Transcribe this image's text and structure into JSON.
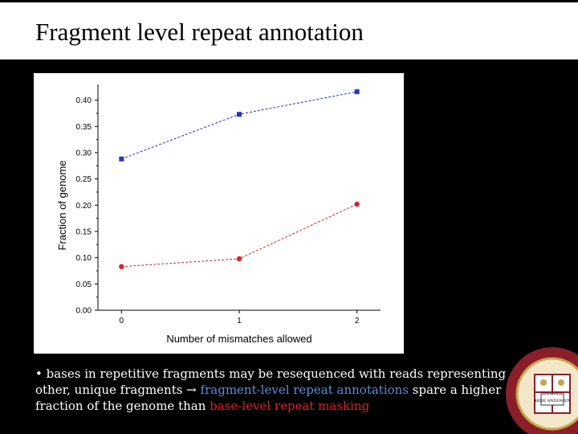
{
  "slide": {
    "title": "Fragment level repeat annotation",
    "bullet": {
      "part1": "• bases in repetitive fragments may be resequenced with reads representing other, unique fragments ",
      "arrow": "→",
      "part2": " fragment-level repeat annotations",
      "part3": " spare a higher fraction of the genome than ",
      "part4": "base-level repeat masking"
    },
    "seal_text": "ARDE ANDOMEN"
  },
  "colors": {
    "blue_series": "#2233cc",
    "red_series": "#dd2222",
    "highlight_blue": "#5b8fd9",
    "highlight_red": "#e02020"
  },
  "chart_data": {
    "type": "line",
    "x": [
      0,
      1,
      2
    ],
    "xticks": [
      "0",
      "1",
      "2"
    ],
    "yticks": [
      "0.00",
      "0.05",
      "0.10",
      "0.15",
      "0.20",
      "0.25",
      "0.30",
      "0.35",
      "0.40"
    ],
    "xlabel": "Number of mismatches allowed",
    "ylabel": "Fraction of genome",
    "ylim": [
      0,
      0.43
    ],
    "xlim": [
      -0.2,
      2.2
    ],
    "grid": false,
    "series": [
      {
        "marker": "square",
        "color": "#2233cc",
        "values": [
          0.288,
          0.373,
          0.416
        ]
      },
      {
        "marker": "circle",
        "color": "#dd2222",
        "values": [
          0.083,
          0.098,
          0.202
        ]
      }
    ]
  }
}
